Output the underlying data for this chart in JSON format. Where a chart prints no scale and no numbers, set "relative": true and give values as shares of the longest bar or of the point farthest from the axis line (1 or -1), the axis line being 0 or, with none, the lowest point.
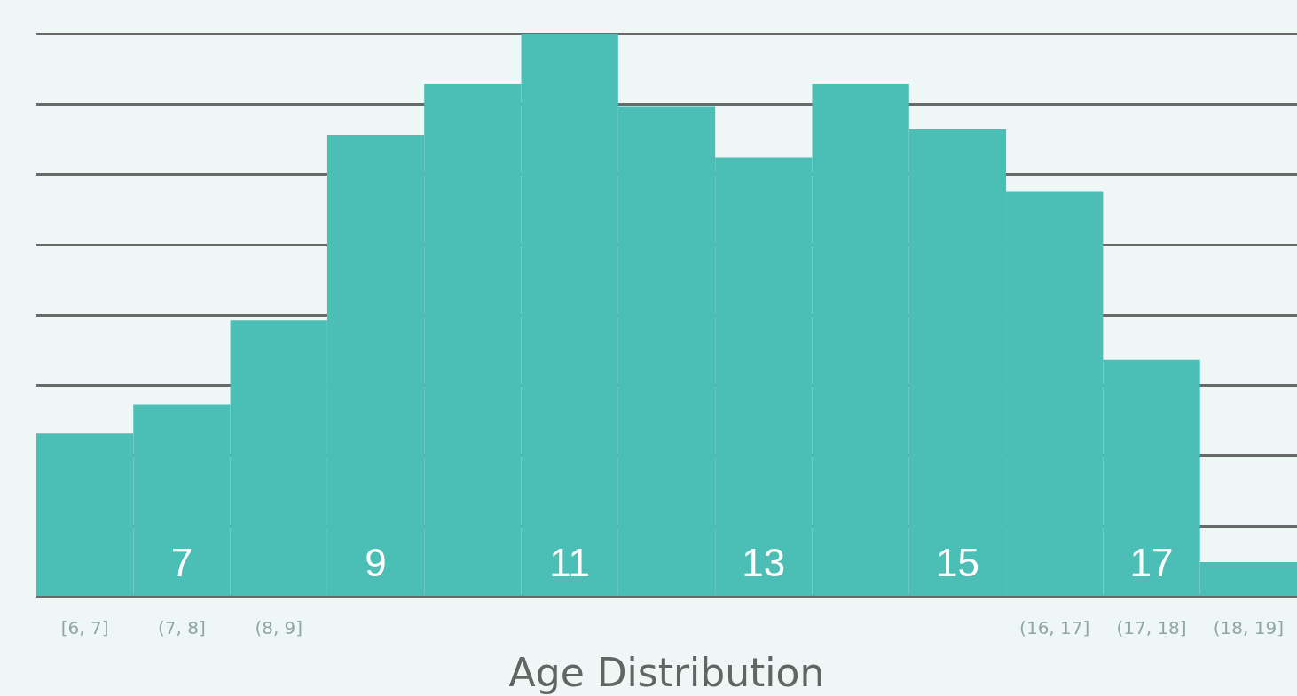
{
  "chart_data": {
    "type": "bar",
    "xlabel": "Age Distribution",
    "relative": true,
    "x": [
      6,
      7,
      8,
      9,
      10,
      11,
      12,
      13,
      14,
      15,
      16,
      17,
      18
    ],
    "values": [
      0.29,
      0.34,
      0.49,
      0.82,
      0.91,
      1,
      0.87,
      0.78,
      0.91,
      0.83,
      0.72,
      0.42,
      0.06
    ],
    "color": "#4bbfb6",
    "xlim": [
      5.5,
      18.5
    ],
    "xticks": [
      7,
      9,
      11,
      13,
      15,
      17
    ],
    "grid": "y",
    "annotations": [
      "[6, 7]",
      "(7, 8]",
      "(8, 9]",
      "(16, 17]",
      "(17, 18]",
      "(18, 19]"
    ]
  }
}
